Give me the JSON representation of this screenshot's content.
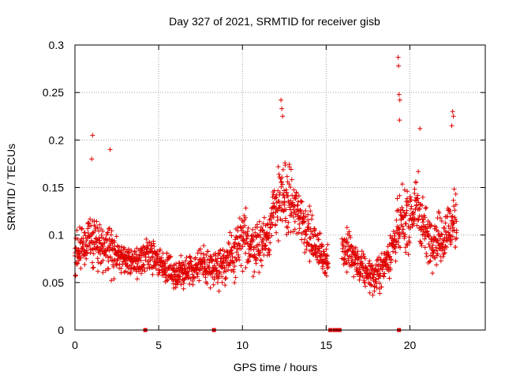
{
  "chart_data": {
    "type": "scatter",
    "title": "Day 327 of 2021, SRMTID for receiver gisb",
    "xlabel": "GPS time / hours",
    "ylabel": "SRMTID / TECUs",
    "xlim": [
      0,
      24.5
    ],
    "ylim": [
      0,
      0.3
    ],
    "xticks": [
      0,
      5,
      10,
      15,
      20
    ],
    "xtick_labels": [
      "0",
      "5",
      "10",
      "15",
      "20"
    ],
    "yticks": [
      0,
      0.05,
      0.1,
      0.15,
      0.2,
      0.25,
      0.3
    ],
    "ytick_labels": [
      "0",
      "0.05",
      "0.1",
      "0.15",
      "0.2",
      "0.25",
      "0.3"
    ],
    "grid": true,
    "marker": "+",
    "color": "#e00000",
    "profile": {
      "x": [
        0,
        0.5,
        1.0,
        1.5,
        2.0,
        2.5,
        3.0,
        3.5,
        4.0,
        4.5,
        5.0,
        5.5,
        6.0,
        6.5,
        7.0,
        7.5,
        8.0,
        8.5,
        9.0,
        9.5,
        10.0,
        10.5,
        11.0,
        11.5,
        12.0,
        12.5,
        13.0,
        13.5,
        14.0,
        14.5,
        15.0,
        15.5,
        16.0,
        16.5,
        17.0,
        17.5,
        18.0,
        18.5,
        19.0,
        19.5,
        20.0,
        20.5,
        21.0,
        21.5,
        22.0,
        22.5,
        22.8
      ],
      "center": [
        0.085,
        0.09,
        0.095,
        0.09,
        0.085,
        0.08,
        0.075,
        0.072,
        0.075,
        0.08,
        0.07,
        0.065,
        0.06,
        0.058,
        0.065,
        0.07,
        0.065,
        0.07,
        0.07,
        0.08,
        0.095,
        0.09,
        0.09,
        0.1,
        0.13,
        0.14,
        0.13,
        0.12,
        0.1,
        0.085,
        0.075,
        0.08,
        0.085,
        0.08,
        0.065,
        0.06,
        0.055,
        0.07,
        0.09,
        0.11,
        0.12,
        0.13,
        0.1,
        0.095,
        0.1,
        0.11,
        0.115
      ],
      "spread": [
        0.025,
        0.03,
        0.035,
        0.03,
        0.03,
        0.025,
        0.02,
        0.02,
        0.02,
        0.025,
        0.02,
        0.02,
        0.018,
        0.018,
        0.02,
        0.025,
        0.02,
        0.025,
        0.022,
        0.03,
        0.035,
        0.035,
        0.03,
        0.03,
        0.04,
        0.05,
        0.04,
        0.035,
        0.03,
        0.025,
        0.02,
        0.025,
        0.03,
        0.025,
        0.02,
        0.02,
        0.02,
        0.025,
        0.03,
        0.04,
        0.04,
        0.045,
        0.03,
        0.03,
        0.035,
        0.04,
        0.035
      ]
    },
    "gaps": [
      [
        15.15,
        15.95
      ]
    ],
    "sample_step_hours": 0.025,
    "points_per_step": 2,
    "spikes": [
      {
        "x": 1.05,
        "y": 0.205
      },
      {
        "x": 1.0,
        "y": 0.18
      },
      {
        "x": 2.1,
        "y": 0.19
      },
      {
        "x": 12.3,
        "y": 0.242
      },
      {
        "x": 12.35,
        "y": 0.233
      },
      {
        "x": 12.4,
        "y": 0.225
      },
      {
        "x": 19.3,
        "y": 0.287
      },
      {
        "x": 19.32,
        "y": 0.278
      },
      {
        "x": 19.35,
        "y": 0.248
      },
      {
        "x": 19.4,
        "y": 0.242
      },
      {
        "x": 19.38,
        "y": 0.221
      },
      {
        "x": 20.6,
        "y": 0.212
      },
      {
        "x": 22.55,
        "y": 0.23
      },
      {
        "x": 22.6,
        "y": 0.225
      },
      {
        "x": 22.5,
        "y": 0.215
      }
    ],
    "zero_markers_x": [
      4.2,
      8.3,
      15.25,
      15.5,
      15.65,
      15.8,
      19.35
    ]
  }
}
